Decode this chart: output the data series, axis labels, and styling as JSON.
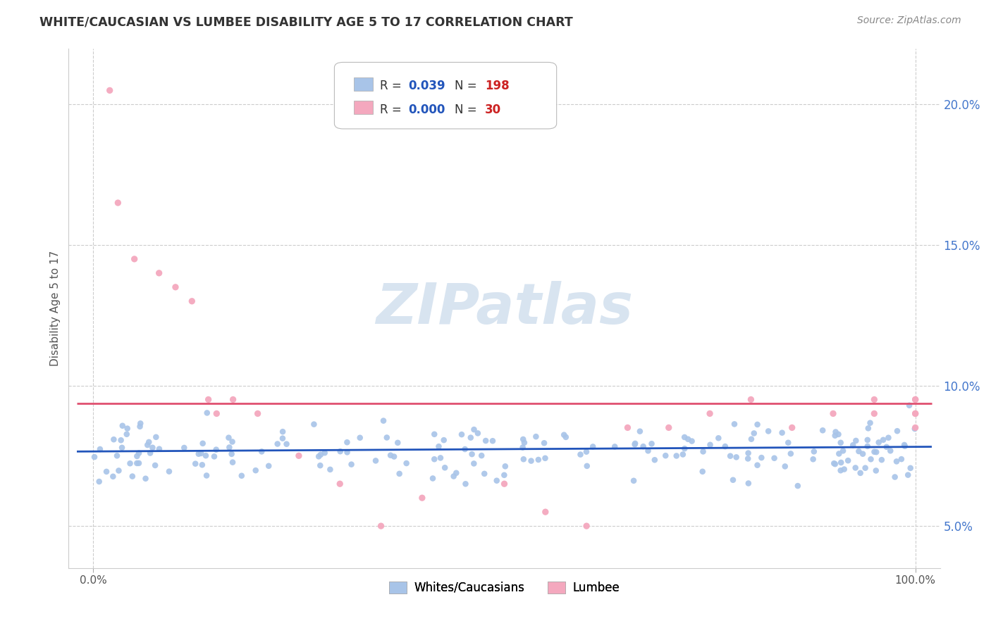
{
  "title": "WHITE/CAUCASIAN VS LUMBEE DISABILITY AGE 5 TO 17 CORRELATION CHART",
  "source": "Source: ZipAtlas.com",
  "ylabel": "Disability Age 5 to 17",
  "xlim": [
    0,
    100
  ],
  "ylim": [
    3.5,
    22.0
  ],
  "yticks": [
    5.0,
    10.0,
    15.0,
    20.0
  ],
  "ytick_labels": [
    "5.0%",
    "10.0%",
    "15.0%",
    "20.0%"
  ],
  "blue_color": "#a8c4e8",
  "pink_color": "#f4a8be",
  "trend_blue": "#2255bb",
  "trend_pink": "#e05070",
  "legend_R_color": "#2255bb",
  "legend_N_color": "#cc2222",
  "ytick_color": "#4477cc",
  "watermark_color": "#d8e4f0",
  "lumbee_x": [
    2,
    3,
    5,
    8,
    10,
    12,
    14,
    15,
    17,
    20,
    25,
    30,
    35,
    40,
    50,
    55,
    60,
    65,
    70,
    75,
    80,
    85,
    90,
    95,
    95,
    100,
    100,
    100,
    100,
    100
  ],
  "lumbee_y": [
    20.5,
    16.5,
    14.5,
    14.0,
    13.5,
    13.0,
    9.5,
    9.0,
    9.5,
    9.0,
    7.5,
    6.5,
    5.0,
    6.0,
    6.5,
    5.5,
    5.0,
    8.5,
    8.5,
    9.0,
    9.5,
    8.5,
    9.0,
    9.5,
    9.0,
    9.0,
    9.5,
    8.5,
    9.5,
    9.0
  ],
  "white_trend_y0": 7.65,
  "white_trend_y1": 7.82,
  "pink_trend_y": 9.35
}
